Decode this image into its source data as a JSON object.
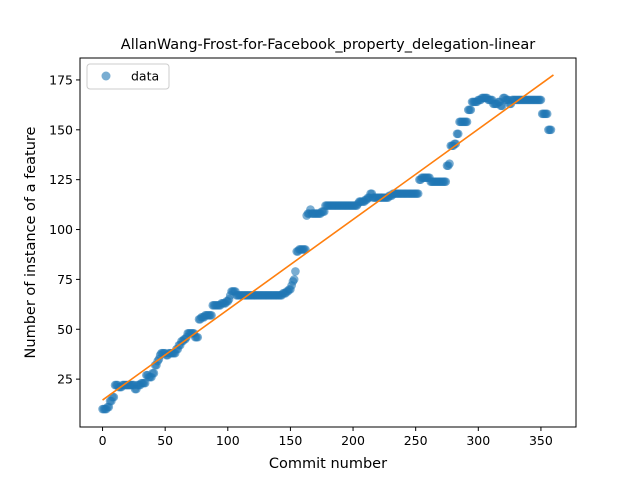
{
  "chart_data": {
    "type": "scatter",
    "title": "AllanWang-Frost-for-Facebook_property_delegation-linear",
    "xlabel": "Commit number",
    "ylabel": "Number of instance of a feature",
    "xlim": [
      -18,
      378
    ],
    "ylim": [
      1,
      186
    ],
    "xticks": [
      0,
      50,
      100,
      150,
      200,
      250,
      300,
      350
    ],
    "yticks": [
      25,
      50,
      75,
      100,
      125,
      150,
      175
    ],
    "grid": false,
    "legend": {
      "position": "top-left",
      "entries": [
        "data"
      ]
    },
    "colors": {
      "data": "#1f77b4",
      "fit": "#ff7f0e"
    },
    "series": [
      {
        "name": "data",
        "kind": "scatter",
        "runs": [
          [
            0,
            10,
            4
          ],
          [
            4,
            11,
            2
          ],
          [
            6,
            14,
            2
          ],
          [
            8,
            16,
            2
          ],
          [
            10,
            22,
            3
          ],
          [
            13,
            21,
            3
          ],
          [
            16,
            22,
            10
          ],
          [
            26,
            20,
            2
          ],
          [
            28,
            22,
            3
          ],
          [
            31,
            23,
            4
          ],
          [
            35,
            27,
            2
          ],
          [
            37,
            26,
            3
          ],
          [
            40,
            28,
            2
          ],
          [
            42,
            32,
            2
          ],
          [
            44,
            34,
            1
          ],
          [
            45,
            35,
            1
          ],
          [
            46,
            37,
            1
          ],
          [
            47,
            38,
            4
          ],
          [
            51,
            37,
            2
          ],
          [
            53,
            38,
            6
          ],
          [
            59,
            40,
            2
          ],
          [
            61,
            42,
            2
          ],
          [
            63,
            44,
            2
          ],
          [
            65,
            45,
            2
          ],
          [
            67,
            46,
            1
          ],
          [
            68,
            48,
            6
          ],
          [
            74,
            46,
            3
          ],
          [
            77,
            55,
            2
          ],
          [
            79,
            56,
            3
          ],
          [
            82,
            57,
            6
          ],
          [
            88,
            62,
            4
          ],
          [
            92,
            62,
            3
          ],
          [
            95,
            63,
            4
          ],
          [
            99,
            64,
            2
          ],
          [
            101,
            65,
            1
          ],
          [
            102,
            67,
            1
          ],
          [
            103,
            69,
            4
          ],
          [
            107,
            67,
            9
          ],
          [
            116,
            67,
            12
          ],
          [
            128,
            67,
            5
          ],
          [
            133,
            67,
            8
          ],
          [
            141,
            67,
            3
          ],
          [
            144,
            68,
            3
          ],
          [
            147,
            69,
            2
          ],
          [
            149,
            70,
            2
          ],
          [
            151,
            72,
            1
          ],
          [
            152,
            74,
            1
          ],
          [
            153,
            75,
            1
          ],
          [
            154,
            79,
            1
          ],
          [
            155,
            89,
            2
          ],
          [
            157,
            90,
            6
          ],
          [
            163,
            107,
            1
          ],
          [
            164,
            108,
            2
          ],
          [
            166,
            110,
            1
          ],
          [
            167,
            108,
            8
          ],
          [
            175,
            109,
            3
          ],
          [
            178,
            112,
            3
          ],
          [
            181,
            112,
            11
          ],
          [
            192,
            112,
            6
          ],
          [
            198,
            112,
            4
          ],
          [
            202,
            112,
            2
          ],
          [
            204,
            113,
            1
          ],
          [
            205,
            114,
            5
          ],
          [
            210,
            115,
            2
          ],
          [
            212,
            116,
            2
          ],
          [
            214,
            118,
            2
          ],
          [
            216,
            116,
            6
          ],
          [
            222,
            116,
            4
          ],
          [
            226,
            116,
            3
          ],
          [
            229,
            117,
            3
          ],
          [
            232,
            118,
            5
          ],
          [
            237,
            118,
            16
          ],
          [
            253,
            125,
            2
          ],
          [
            255,
            126,
            4
          ],
          [
            259,
            126,
            3
          ],
          [
            262,
            124,
            4
          ],
          [
            266,
            124,
            9
          ],
          [
            275,
            132,
            2
          ],
          [
            277,
            133,
            1
          ],
          [
            278,
            142,
            3
          ],
          [
            281,
            143,
            2
          ],
          [
            283,
            148,
            2
          ],
          [
            285,
            154,
            5
          ],
          [
            290,
            154,
            2
          ],
          [
            292,
            160,
            3
          ],
          [
            295,
            164,
            2
          ],
          [
            297,
            164,
            3
          ],
          [
            300,
            165,
            3
          ],
          [
            303,
            166,
            5
          ],
          [
            308,
            165,
            4
          ],
          [
            312,
            163,
            4
          ],
          [
            316,
            164,
            2
          ],
          [
            318,
            162,
            2
          ],
          [
            320,
            166,
            2
          ],
          [
            322,
            165,
            3
          ],
          [
            325,
            163,
            2
          ],
          [
            327,
            165,
            5
          ],
          [
            332,
            165,
            8
          ],
          [
            340,
            165,
            11
          ],
          [
            351,
            158,
            5
          ],
          [
            356,
            150,
            3
          ]
        ]
      },
      {
        "name": "",
        "kind": "line",
        "x": [
          0,
          360
        ],
        "y": [
          14.5,
          177.5
        ]
      }
    ]
  }
}
